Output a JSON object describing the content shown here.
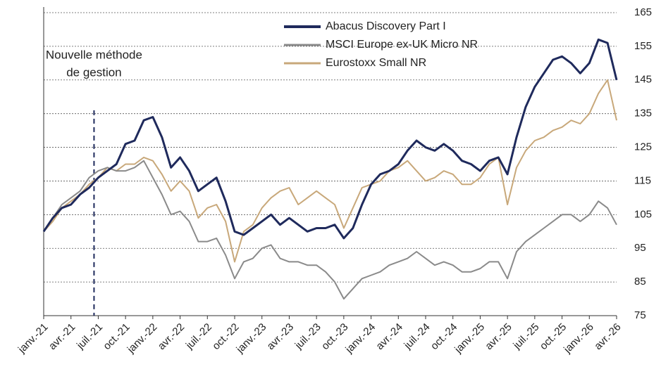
{
  "chart_data": {
    "type": "line",
    "annotation": {
      "lines": [
        "Nouvelle méthode",
        "de gestion"
      ],
      "x": "juil.-21"
    },
    "categories": [
      "janv.-21",
      null,
      null,
      "avr.-21",
      null,
      null,
      "juil.-21",
      null,
      null,
      "oct.-21",
      null,
      null,
      "janv.-22",
      null,
      null,
      "avr.-22",
      null,
      null,
      "juil.-22",
      null,
      null,
      "oct.-22",
      null,
      null,
      "janv.-23",
      null,
      null,
      "avr.-23",
      null,
      null,
      "juil.-23",
      null,
      null,
      "oct.-23",
      null,
      null,
      "janv.-24",
      null,
      null,
      "avr.-24",
      null,
      null,
      "juil.-24",
      null,
      null,
      "oct.-24",
      null,
      null,
      "janv.-25",
      null,
      null,
      "avr.-25",
      null,
      null,
      "juil.-25",
      null,
      null,
      "oct.-25",
      null,
      null,
      "janv.-26",
      null,
      null,
      "avr.-26"
    ],
    "series": [
      {
        "name": "Abacus Discovery Part I",
        "color": "#1f2a5c",
        "width": 3,
        "values": [
          100,
          104,
          107,
          108,
          111,
          113,
          116,
          118,
          120,
          126,
          127,
          133,
          134,
          128,
          119,
          122,
          118,
          112,
          114,
          116,
          109,
          100,
          99,
          101,
          103,
          105,
          102,
          104,
          102,
          100,
          101,
          101,
          102,
          98,
          101,
          108,
          114,
          117,
          118,
          120,
          124,
          127,
          125,
          124,
          126,
          124,
          121,
          120,
          118,
          121,
          122,
          117,
          128,
          137,
          143,
          147,
          151,
          152,
          150,
          147,
          150,
          157,
          156,
          145
        ]
      },
      {
        "name": "MSCI Europe ex-UK Micro NR",
        "color": "#8a8a8a",
        "width": 2,
        "values": [
          100,
          104,
          108,
          110,
          112,
          116,
          118,
          119,
          118,
          118,
          119,
          121,
          116,
          111,
          105,
          106,
          103,
          97,
          97,
          98,
          93,
          86,
          91,
          92,
          95,
          96,
          92,
          91,
          91,
          90,
          90,
          88,
          85,
          80,
          83,
          86,
          87,
          88,
          90,
          91,
          92,
          94,
          92,
          90,
          91,
          90,
          88,
          88,
          89,
          91,
          91,
          86,
          94,
          97,
          99,
          101,
          103,
          105,
          105,
          103,
          105,
          109,
          107,
          102
        ]
      },
      {
        "name": "Eurostoxx Small NR",
        "color": "#c8a87a",
        "width": 2,
        "values": [
          100,
          103,
          107,
          109,
          111,
          114,
          116,
          119,
          118,
          120,
          120,
          122,
          121,
          117,
          112,
          115,
          112,
          104,
          107,
          108,
          103,
          91,
          100,
          102,
          107,
          110,
          112,
          113,
          108,
          110,
          112,
          110,
          108,
          101,
          107,
          113,
          114,
          115,
          118,
          119,
          121,
          118,
          115,
          116,
          118,
          117,
          114,
          114,
          116,
          120,
          122,
          108,
          119,
          124,
          127,
          128,
          130,
          131,
          133,
          132,
          135,
          141,
          145,
          133
        ]
      }
    ],
    "ylim": [
      75,
      165
    ],
    "yticks": [
      75,
      85,
      95,
      105,
      115,
      125,
      135,
      145,
      155,
      165
    ],
    "grid": true,
    "legend": "top"
  }
}
